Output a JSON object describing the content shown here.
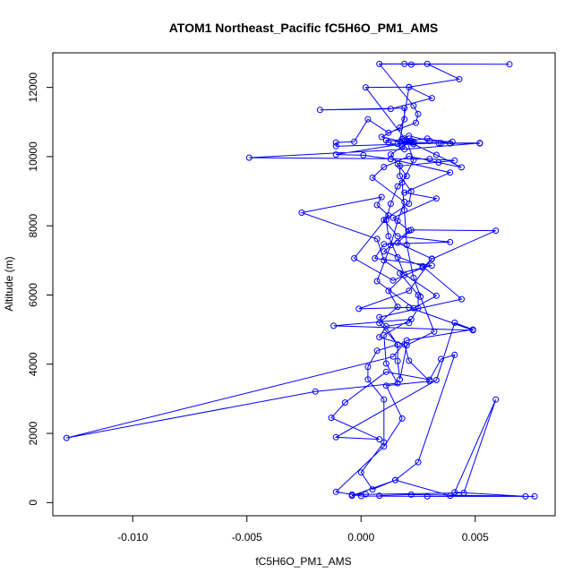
{
  "chart_data": {
    "type": "line",
    "title": "ATOM1 Northeast_Pacific fC5H6O_PM1_AMS",
    "xlabel": "fC5H6O_PM1_AMS",
    "ylabel": "Altitude (m)",
    "xlim": [
      -0.0135,
      0.0085
    ],
    "ylim": [
      -380,
      13000
    ],
    "xticks": [
      -0.01,
      -0.005,
      0.0,
      0.005
    ],
    "xtick_labels": [
      "-0.010",
      "-0.005",
      "0.000",
      "0.005"
    ],
    "yticks": [
      0,
      2000,
      4000,
      6000,
      8000,
      10000,
      12000
    ],
    "ytick_labels": [
      "0",
      "2000",
      "4000",
      "6000",
      "8000",
      "10000",
      "12000"
    ],
    "markers": "open circles",
    "grid": false,
    "series": [
      {
        "color": "#0000ff",
        "points": [
          [
            0.0008,
            200
          ],
          [
            0.0022,
            230
          ],
          [
            0.0076,
            180
          ],
          [
            0.0039,
            200
          ],
          [
            0.0015,
            650
          ],
          [
            0.0005,
            380
          ],
          [
            0.0,
            870
          ],
          [
            0.001,
            1740
          ],
          [
            0.001,
            2980
          ],
          [
            0.0003,
            3560
          ],
          [
            0.0003,
            3920
          ],
          [
            0.0007,
            4390
          ],
          [
            0.0016,
            4570
          ],
          [
            0.0008,
            5190
          ],
          [
            0.0016,
            5660
          ],
          [
            0.0012,
            6120
          ],
          [
            0.0019,
            6580
          ],
          [
            0.0016,
            7090
          ],
          [
            0.0012,
            7700
          ],
          [
            0.0011,
            8170
          ],
          [
            0.0013,
            8640
          ],
          [
            0.0016,
            9140
          ],
          [
            0.002,
            9440
          ],
          [
            0.0016,
            9790
          ],
          [
            0.0013,
            10060
          ],
          [
            0.0018,
            10290
          ],
          [
            0.0019,
            10430
          ],
          [
            0.0023,
            10410
          ],
          [
            0.0034,
            10390
          ],
          [
            0.0052,
            10390
          ],
          [
            0.0019,
            10210
          ],
          [
            -0.0049,
            9970
          ],
          [
            0.003,
            9930
          ],
          [
            0.0041,
            9890
          ],
          [
            0.0017,
            9730
          ],
          [
            0.0017,
            9440
          ],
          [
            0.0022,
            9000
          ],
          [
            0.0021,
            8640
          ],
          [
            0.001,
            8170
          ],
          [
            0.0016,
            7700
          ],
          [
            0.0039,
            7530
          ],
          [
            0.001,
            7470
          ],
          [
            0.0006,
            7060
          ],
          [
            0.0031,
            6850
          ],
          [
            0.0017,
            6630
          ],
          [
            0.0025,
            6000
          ],
          [
            0.0025,
            5620
          ],
          [
            0.0021,
            5190
          ],
          [
            0.0011,
            5100
          ],
          [
            0.0008,
            4780
          ],
          [
            0.0019,
            4570
          ],
          [
            0.0021,
            4100
          ],
          [
            0.003,
            3510
          ],
          [
            0.0011,
            3380
          ],
          [
            0.0018,
            2430
          ],
          [
            0.001,
            1620
          ],
          [
            -0.0011,
            310
          ],
          [
            0.0,
            190
          ],
          [
            0.0029,
            180
          ],
          [
            0.0072,
            180
          ],
          [
            0.0041,
            300
          ],
          [
            0.0059,
            2980
          ],
          [
            0.0045,
            280
          ],
          [
            -0.0004,
            230
          ],
          [
            0.0002,
            240
          ],
          [
            -0.0004,
            200
          ],
          [
            0.0015,
            650
          ],
          [
            0.0025,
            1170
          ],
          [
            0.0041,
            4270
          ],
          [
            0.0035,
            4150
          ],
          [
            0.003,
            3550
          ],
          [
            0.0011,
            3780
          ],
          [
            -0.0007,
            2890
          ],
          [
            -0.0013,
            2450
          ],
          [
            0.0008,
            1830
          ],
          [
            -0.0011,
            1890
          ],
          [
            0.0033,
            3540
          ],
          [
            0.0041,
            5200
          ],
          [
            0.0049,
            5000
          ],
          [
            0.002,
            4690
          ],
          [
            0.0014,
            4220
          ],
          [
            -0.0129,
            1870
          ],
          [
            -0.002,
            3210
          ],
          [
            0.0016,
            3450
          ],
          [
            0.0011,
            4020
          ],
          [
            0.001,
            4840
          ],
          [
            0.0022,
            5300
          ],
          [
            -0.0012,
            5110
          ],
          [
            0.0049,
            4980
          ],
          [
            0.0021,
            5640
          ],
          [
            -0.0001,
            5600
          ],
          [
            0.0021,
            6120
          ],
          [
            0.0031,
            7050
          ],
          [
            0.0016,
            7510
          ],
          [
            0.0022,
            7880
          ],
          [
            0.0059,
            7860
          ],
          [
            0.0031,
            7040
          ],
          [
            0.0027,
            6790
          ],
          [
            0.0014,
            6420
          ],
          [
            -0.0003,
            7060
          ],
          [
            0.0012,
            8300
          ],
          [
            0.0007,
            8600
          ],
          [
            0.0009,
            8830
          ],
          [
            -0.0026,
            8380
          ],
          [
            0.0007,
            7620
          ],
          [
            0.001,
            7000
          ],
          [
            0.0033,
            5980
          ],
          [
            0.0023,
            5620
          ],
          [
            0.0007,
            6400
          ],
          [
            0.0013,
            7440
          ],
          [
            0.0016,
            8140
          ],
          [
            0.0019,
            8690
          ],
          [
            0.0005,
            9390
          ],
          [
            0.001,
            9700
          ],
          [
            0.0021,
            10010
          ],
          [
            0.0034,
            9830
          ],
          [
            0.0044,
            9690
          ],
          [
            0.0033,
            10050
          ],
          [
            0.0023,
            10360
          ],
          [
            0.0009,
            10570
          ],
          [
            0.0017,
            10840
          ],
          [
            0.0019,
            11080
          ],
          [
            0.0019,
            11400
          ],
          [
            -0.0018,
            11350
          ],
          [
            0.0013,
            11380
          ],
          [
            0.0031,
            11690
          ],
          [
            0.0021,
            12010
          ],
          [
            0.0043,
            12240
          ],
          [
            0.0029,
            12680
          ],
          [
            0.0022,
            12660
          ],
          [
            0.0019,
            12680
          ],
          [
            0.0065,
            12670
          ],
          [
            0.0008,
            12680
          ],
          [
            0.0023,
            11470
          ],
          [
            0.0025,
            11230
          ],
          [
            0.0024,
            10980
          ],
          [
            0.0012,
            10690
          ],
          [
            0.0003,
            11080
          ],
          [
            -0.0003,
            10430
          ],
          [
            -0.0011,
            10410
          ],
          [
            -0.0011,
            10300
          ],
          [
            0.0035,
            10390
          ],
          [
            0.0052,
            10380
          ],
          [
            0.0022,
            10410
          ],
          [
            -0.0011,
            10060
          ],
          [
            0.0001,
            10040
          ],
          [
            0.0013,
            9930
          ],
          [
            0.0039,
            9540
          ],
          [
            0.0019,
            8960
          ],
          [
            0.0033,
            8790
          ],
          [
            0.0014,
            8230
          ],
          [
            0.0021,
            7860
          ],
          [
            0.001,
            7260
          ],
          [
            0.0027,
            6830
          ],
          [
            0.0044,
            5880
          ],
          [
            0.0008,
            5360
          ],
          [
            0.0016,
            4560
          ],
          [
            0.0016,
            4090
          ],
          [
            0.0017,
            3560
          ],
          [
            0.002,
            4550
          ],
          [
            0.0032,
            4940
          ],
          [
            0.0026,
            5950
          ],
          [
            0.0023,
            6500
          ],
          [
            0.002,
            7450
          ],
          [
            0.0019,
            8450
          ],
          [
            0.0018,
            9250
          ],
          [
            0.0023,
            9900
          ],
          [
            0.002,
            10450
          ],
          [
            0.0002,
            12000
          ],
          [
            0.0021,
            12010
          ],
          [
            0.0017,
            10430
          ],
          [
            0.0029,
            10520
          ],
          [
            0.0039,
            10380
          ],
          [
            0.0022,
            10420
          ],
          [
            0.0011,
            10470
          ],
          [
            0.0012,
            10410
          ],
          [
            0.0018,
            10300
          ],
          [
            0.0023,
            10430
          ],
          [
            0.0019,
            10520
          ],
          [
            0.0022,
            10450
          ],
          [
            0.0016,
            10370
          ],
          [
            0.0018,
            10510
          ],
          [
            0.0021,
            10600
          ],
          [
            0.003,
            10450
          ],
          [
            0.004,
            10430
          ]
        ]
      }
    ]
  }
}
